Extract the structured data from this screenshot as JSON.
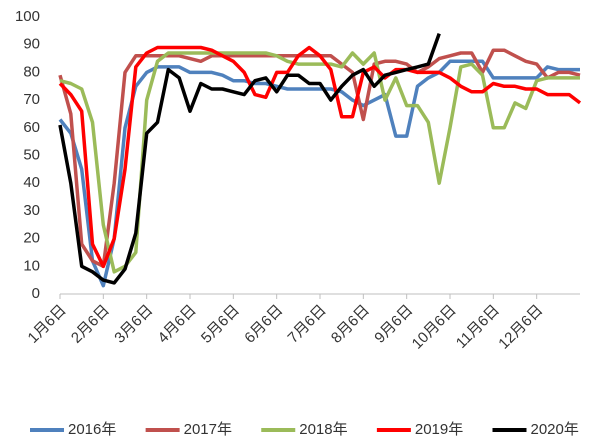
{
  "chart_data": {
    "type": "line",
    "categories": [
      "1月6日",
      null,
      null,
      null,
      "2月6日",
      null,
      null,
      null,
      "3月6日",
      null,
      null,
      null,
      "4月6日",
      null,
      null,
      null,
      "5月6日",
      null,
      null,
      null,
      "6月6日",
      null,
      null,
      null,
      "7月6日",
      null,
      null,
      null,
      "8月6日",
      null,
      null,
      null,
      "9月6日",
      null,
      null,
      null,
      "10月6日",
      null,
      null,
      null,
      "11月6日",
      null,
      null,
      null,
      "12月6日",
      null,
      null,
      null,
      null
    ],
    "ylim": [
      0,
      100
    ],
    "yticks": [
      0,
      10,
      20,
      30,
      40,
      50,
      60,
      70,
      80,
      90,
      100
    ],
    "grid": false,
    "legend": "bottom",
    "series": [
      {
        "name": "2016年",
        "color": "#4f81bd",
        "values": [
          63,
          58,
          45,
          12,
          3,
          20,
          60,
          75,
          80,
          82,
          82,
          82,
          80,
          80,
          80,
          79,
          77,
          77,
          76,
          76,
          75,
          74,
          74,
          74,
          74,
          74,
          73,
          70,
          68,
          70,
          72,
          57,
          57,
          75,
          78,
          80,
          84,
          84,
          84,
          84,
          78,
          78,
          78,
          78,
          78,
          82,
          81,
          81,
          81
        ]
      },
      {
        "name": "2017年",
        "color": "#c0504d",
        "values": [
          79,
          65,
          18,
          12,
          10,
          40,
          80,
          86,
          86,
          86,
          86,
          86,
          85,
          84,
          86,
          86,
          86,
          86,
          86,
          86,
          86,
          86,
          86,
          86,
          86,
          86,
          83,
          80,
          63,
          83,
          84,
          84,
          83,
          80,
          82,
          85,
          86,
          87,
          87,
          80,
          88,
          88,
          86,
          84,
          83,
          78,
          80,
          80,
          79
        ]
      },
      {
        "name": "2018年",
        "color": "#9bbb59",
        "values": [
          77,
          76,
          74,
          62,
          25,
          8,
          10,
          15,
          70,
          84,
          87,
          87,
          87,
          87,
          87,
          87,
          87,
          87,
          87,
          87,
          86,
          84,
          83,
          83,
          83,
          83,
          82,
          87,
          83,
          87,
          70,
          78,
          68,
          68,
          62,
          40,
          60,
          82,
          83,
          79,
          60,
          60,
          69,
          67,
          77,
          78,
          78,
          78,
          78
        ]
      },
      {
        "name": "2019年",
        "color": "#ff0000",
        "values": [
          76,
          72,
          66,
          18,
          10,
          20,
          45,
          82,
          87,
          89,
          89,
          89,
          89,
          89,
          88,
          86,
          84,
          80,
          72,
          71,
          80,
          80,
          86,
          89,
          86,
          81,
          64,
          64,
          80,
          82,
          78,
          81,
          81,
          80,
          80,
          80,
          78,
          75,
          73,
          73,
          76,
          75,
          75,
          74,
          74,
          72,
          72,
          72,
          69
        ]
      },
      {
        "name": "2020年",
        "color": "#000000",
        "values": [
          61,
          40,
          10,
          8,
          5,
          4,
          9,
          22,
          58,
          62,
          81,
          78,
          66,
          76,
          74,
          74,
          73,
          72,
          77,
          78,
          73,
          79,
          79,
          76,
          76,
          70,
          75,
          79,
          81,
          75,
          79,
          80,
          81,
          82,
          83,
          94,
          null,
          null,
          null,
          null,
          null,
          null,
          null,
          null,
          null,
          null,
          null,
          null,
          null
        ]
      }
    ]
  }
}
